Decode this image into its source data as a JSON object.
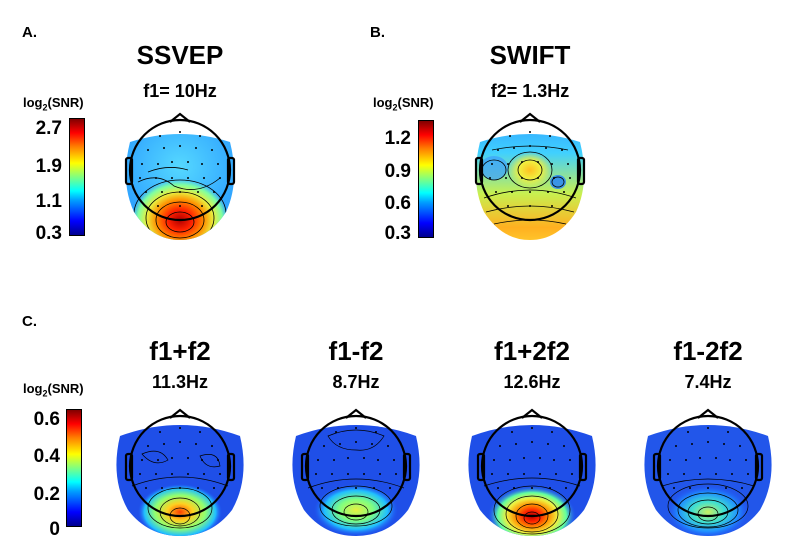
{
  "panels": {
    "a": {
      "label": "A.",
      "title": "SSVEP",
      "freq": "f1= 10Hz",
      "colorbar": {
        "label_main": "log",
        "label_sub": "2",
        "label_tail": "(SNR)",
        "ticks": [
          "2.7",
          "1.9",
          "1.1",
          "0.3"
        ]
      }
    },
    "b": {
      "label": "B.",
      "title": "SWIFT",
      "freq": "f2= 1.3Hz",
      "colorbar": {
        "label_main": "log",
        "label_sub": "2",
        "label_tail": "(SNR)",
        "ticks": [
          "1.2",
          "0.9",
          "0.6",
          "0.3"
        ]
      }
    },
    "c": {
      "label": "C.",
      "colorbar": {
        "label_main": "log",
        "label_sub": "2",
        "label_tail": "(SNR)",
        "ticks": [
          "0.6",
          "0.4",
          "0.2",
          "0"
        ]
      },
      "maps": [
        {
          "title": "f1+f2",
          "freq": "11.3Hz"
        },
        {
          "title": "f1-f2",
          "freq": "8.7Hz"
        },
        {
          "title": "f1+2f2",
          "freq": "12.6Hz"
        },
        {
          "title": "f1-2f2",
          "freq": "7.4Hz"
        }
      ]
    }
  },
  "colors": {
    "colormap": "jet",
    "outline": "#000000"
  }
}
